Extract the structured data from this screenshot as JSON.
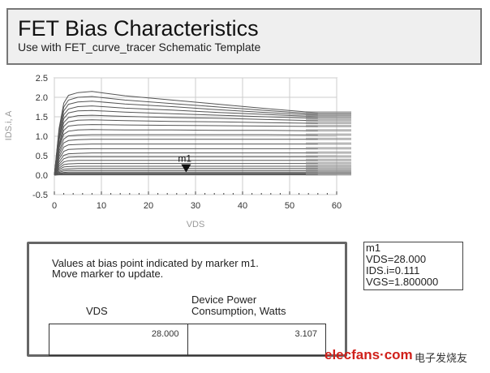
{
  "header": {
    "title": "FET Bias Characteristics",
    "subtitle": "Use with FET_curve_tracer Schematic Template"
  },
  "chart_data": {
    "type": "line",
    "xlabel": "VDS",
    "ylabel": "IDS.i, A",
    "xlim": [
      0,
      60
    ],
    "ylim": [
      -0.5,
      2.5
    ],
    "xticks": [
      "0",
      "10",
      "20",
      "30",
      "40",
      "50",
      "60"
    ],
    "yticks": [
      "2.5",
      "2.0",
      "1.5",
      "1.0",
      "0.5",
      "0.0",
      "-0.5"
    ],
    "grid": true,
    "line_color": "#555555",
    "x": [
      0,
      1,
      2,
      3,
      5,
      8,
      15,
      25,
      35,
      45,
      56
    ],
    "series": [
      {
        "values": [
          0,
          1.2,
          1.85,
          2.05,
          2.12,
          2.15,
          2.04,
          1.93,
          1.82,
          1.71,
          1.6
        ]
      },
      {
        "values": [
          0,
          1.15,
          1.75,
          1.93,
          2.0,
          2.02,
          1.93,
          1.84,
          1.75,
          1.66,
          1.57
        ]
      },
      {
        "values": [
          0,
          1.1,
          1.65,
          1.82,
          1.88,
          1.9,
          1.83,
          1.76,
          1.68,
          1.61,
          1.54
        ]
      },
      {
        "values": [
          0,
          1.0,
          1.55,
          1.7,
          1.76,
          1.78,
          1.72,
          1.67,
          1.61,
          1.56,
          1.5
        ]
      },
      {
        "values": [
          0,
          0.95,
          1.45,
          1.6,
          1.65,
          1.66,
          1.62,
          1.58,
          1.54,
          1.5,
          1.46
        ]
      },
      {
        "values": [
          0,
          0.9,
          1.35,
          1.48,
          1.53,
          1.54,
          1.51,
          1.48,
          1.46,
          1.43,
          1.4
        ]
      },
      {
        "values": [
          0,
          0.8,
          1.25,
          1.37,
          1.41,
          1.42,
          1.4,
          1.38,
          1.37,
          1.35,
          1.33
        ]
      },
      {
        "values": [
          0,
          0.75,
          1.15,
          1.26,
          1.29,
          1.3,
          1.29,
          1.28,
          1.27,
          1.26,
          1.25
        ]
      },
      {
        "values": [
          0,
          0.7,
          1.05,
          1.13,
          1.16,
          1.17,
          1.16,
          1.16,
          1.15,
          1.15,
          1.14
        ]
      },
      {
        "values": [
          0,
          0.62,
          0.93,
          1.01,
          1.03,
          1.04,
          1.04,
          1.04,
          1.04,
          1.04,
          1.03
        ]
      },
      {
        "values": [
          0,
          0.55,
          0.83,
          0.89,
          0.91,
          0.92,
          0.92,
          0.92,
          0.92,
          0.92,
          0.92
        ]
      },
      {
        "values": [
          0,
          0.48,
          0.72,
          0.78,
          0.79,
          0.8,
          0.8,
          0.8,
          0.8,
          0.8,
          0.8
        ]
      },
      {
        "values": [
          0,
          0.41,
          0.61,
          0.66,
          0.67,
          0.68,
          0.68,
          0.68,
          0.68,
          0.68,
          0.68
        ]
      },
      {
        "values": [
          0,
          0.34,
          0.51,
          0.55,
          0.56,
          0.57,
          0.57,
          0.57,
          0.57,
          0.57,
          0.57
        ]
      },
      {
        "values": [
          0,
          0.28,
          0.42,
          0.46,
          0.47,
          0.47,
          0.47,
          0.47,
          0.47,
          0.47,
          0.47
        ]
      },
      {
        "values": [
          0,
          0.23,
          0.34,
          0.37,
          0.38,
          0.38,
          0.38,
          0.38,
          0.38,
          0.38,
          0.38
        ]
      },
      {
        "values": [
          0,
          0.18,
          0.27,
          0.29,
          0.3,
          0.3,
          0.3,
          0.3,
          0.3,
          0.3,
          0.3
        ]
      },
      {
        "values": [
          0,
          0.14,
          0.21,
          0.22,
          0.23,
          0.23,
          0.23,
          0.23,
          0.23,
          0.23,
          0.23
        ]
      },
      {
        "values": [
          0,
          0.1,
          0.15,
          0.16,
          0.17,
          0.17,
          0.17,
          0.17,
          0.17,
          0.17,
          0.17
        ]
      },
      {
        "values": [
          0,
          0.07,
          0.11,
          0.12,
          0.12,
          0.12,
          0.12,
          0.12,
          0.12,
          0.12,
          0.12
        ]
      },
      {
        "values": [
          0,
          0.05,
          0.07,
          0.08,
          0.08,
          0.08,
          0.08,
          0.08,
          0.08,
          0.08,
          0.08
        ]
      },
      {
        "values": [
          0,
          0.03,
          0.05,
          0.05,
          0.05,
          0.05,
          0.05,
          0.05,
          0.05,
          0.05,
          0.05
        ]
      },
      {
        "values": [
          0,
          0.02,
          0.03,
          0.03,
          0.03,
          0.03,
          0.03,
          0.03,
          0.03,
          0.03,
          0.03
        ]
      },
      {
        "values": [
          0,
          0.01,
          0.01,
          0.01,
          0.01,
          0.01,
          0.01,
          0.01,
          0.01,
          0.01,
          0.01
        ]
      }
    ],
    "marker": {
      "label": "m1",
      "x": 28,
      "y": 0.111
    }
  },
  "bias_table": {
    "note_line1": "Values at bias point indicated by marker m1.",
    "note_line2": "Move marker to update.",
    "col_vds": "VDS",
    "col_power_line1": "Device Power",
    "col_power_line2": "Consumption, Watts",
    "vds_value": "28.000",
    "power_value": "3.107"
  },
  "marker_readout": {
    "name": "m1",
    "vds": "VDS=28.000",
    "ids": "IDS.i=0.111",
    "vgs": "VGS=1.800000"
  },
  "watermark": {
    "site": "elecfans·com",
    "chinese": "电子发烧友"
  }
}
